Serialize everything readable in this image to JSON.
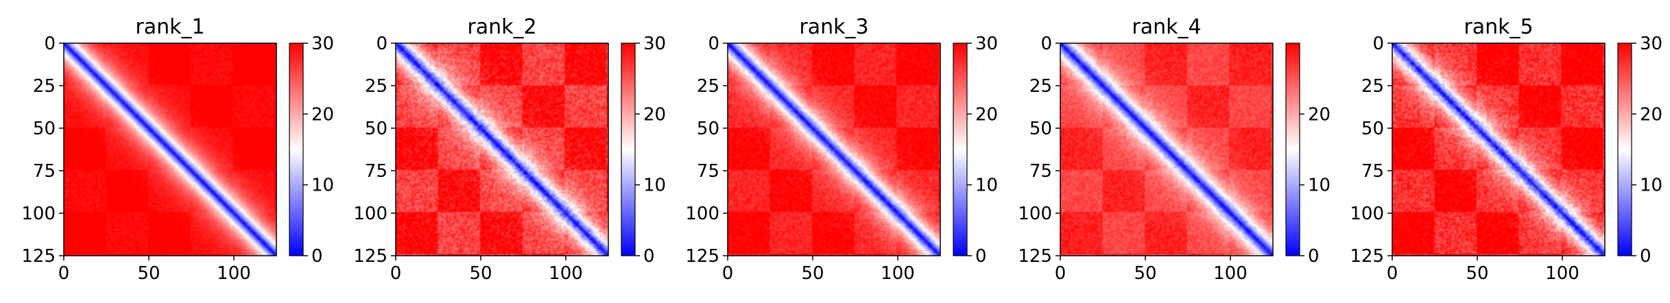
{
  "chart_data": [
    {
      "type": "heatmap",
      "title": "rank_1",
      "xlim": [
        0,
        125
      ],
      "ylim": [
        125,
        0
      ],
      "xticks": [
        0,
        50,
        100
      ],
      "yticks": [
        0,
        25,
        50,
        75,
        100,
        125
      ],
      "colorbar": {
        "range": [
          0,
          30
        ],
        "ticks": [
          0,
          10,
          20,
          30
        ],
        "colormap": "bwr",
        "colors": [
          "#0000ff",
          "#ffffff",
          "#ff0000"
        ]
      },
      "matrix_size": 126,
      "pattern": {
        "diagonal_value": 0,
        "far_value": 30,
        "texture": "low"
      }
    },
    {
      "type": "heatmap",
      "title": "rank_2",
      "xlim": [
        0,
        125
      ],
      "ylim": [
        125,
        0
      ],
      "xticks": [
        0,
        50,
        100
      ],
      "yticks": [
        0,
        25,
        50,
        75,
        100,
        125
      ],
      "colorbar": {
        "range": [
          0,
          30
        ],
        "ticks": [
          0,
          10,
          20,
          30
        ],
        "colormap": "bwr",
        "colors": [
          "#0000ff",
          "#ffffff",
          "#ff0000"
        ]
      },
      "matrix_size": 126,
      "pattern": {
        "diagonal_value": 0,
        "far_value": 28,
        "texture": "high"
      }
    },
    {
      "type": "heatmap",
      "title": "rank_3",
      "xlim": [
        0,
        125
      ],
      "ylim": [
        125,
        0
      ],
      "xticks": [
        0,
        50,
        100
      ],
      "yticks": [
        0,
        25,
        50,
        75,
        100,
        125
      ],
      "colorbar": {
        "range": [
          0,
          30
        ],
        "ticks": [
          0,
          10,
          20,
          30
        ],
        "colormap": "bwr",
        "colors": [
          "#0000ff",
          "#ffffff",
          "#ff0000"
        ]
      },
      "matrix_size": 126,
      "pattern": {
        "diagonal_value": 0,
        "far_value": 29,
        "texture": "medium"
      }
    },
    {
      "type": "heatmap",
      "title": "rank_4",
      "xlim": [
        0,
        125
      ],
      "ylim": [
        125,
        0
      ],
      "xticks": [
        0,
        50,
        100
      ],
      "yticks": [
        0,
        25,
        50,
        75,
        100,
        125
      ],
      "colorbar": {
        "range": [
          0,
          30
        ],
        "ticks": [
          0,
          10,
          20
        ],
        "colormap": "bwr",
        "colors": [
          "#0000ff",
          "#ffffff",
          "#ff0000"
        ]
      },
      "matrix_size": 126,
      "pattern": {
        "diagonal_value": 0,
        "far_value": 27,
        "texture": "medium"
      }
    },
    {
      "type": "heatmap",
      "title": "rank_5",
      "xlim": [
        0,
        125
      ],
      "ylim": [
        125,
        0
      ],
      "xticks": [
        0,
        50,
        100
      ],
      "yticks": [
        0,
        25,
        50,
        75,
        100,
        125
      ],
      "colorbar": {
        "range": [
          0,
          30
        ],
        "ticks": [
          0,
          10,
          20,
          30
        ],
        "colormap": "bwr",
        "colors": [
          "#0000ff",
          "#ffffff",
          "#ff0000"
        ]
      },
      "matrix_size": 126,
      "pattern": {
        "diagonal_value": 0,
        "far_value": 29,
        "texture": "high"
      }
    }
  ]
}
